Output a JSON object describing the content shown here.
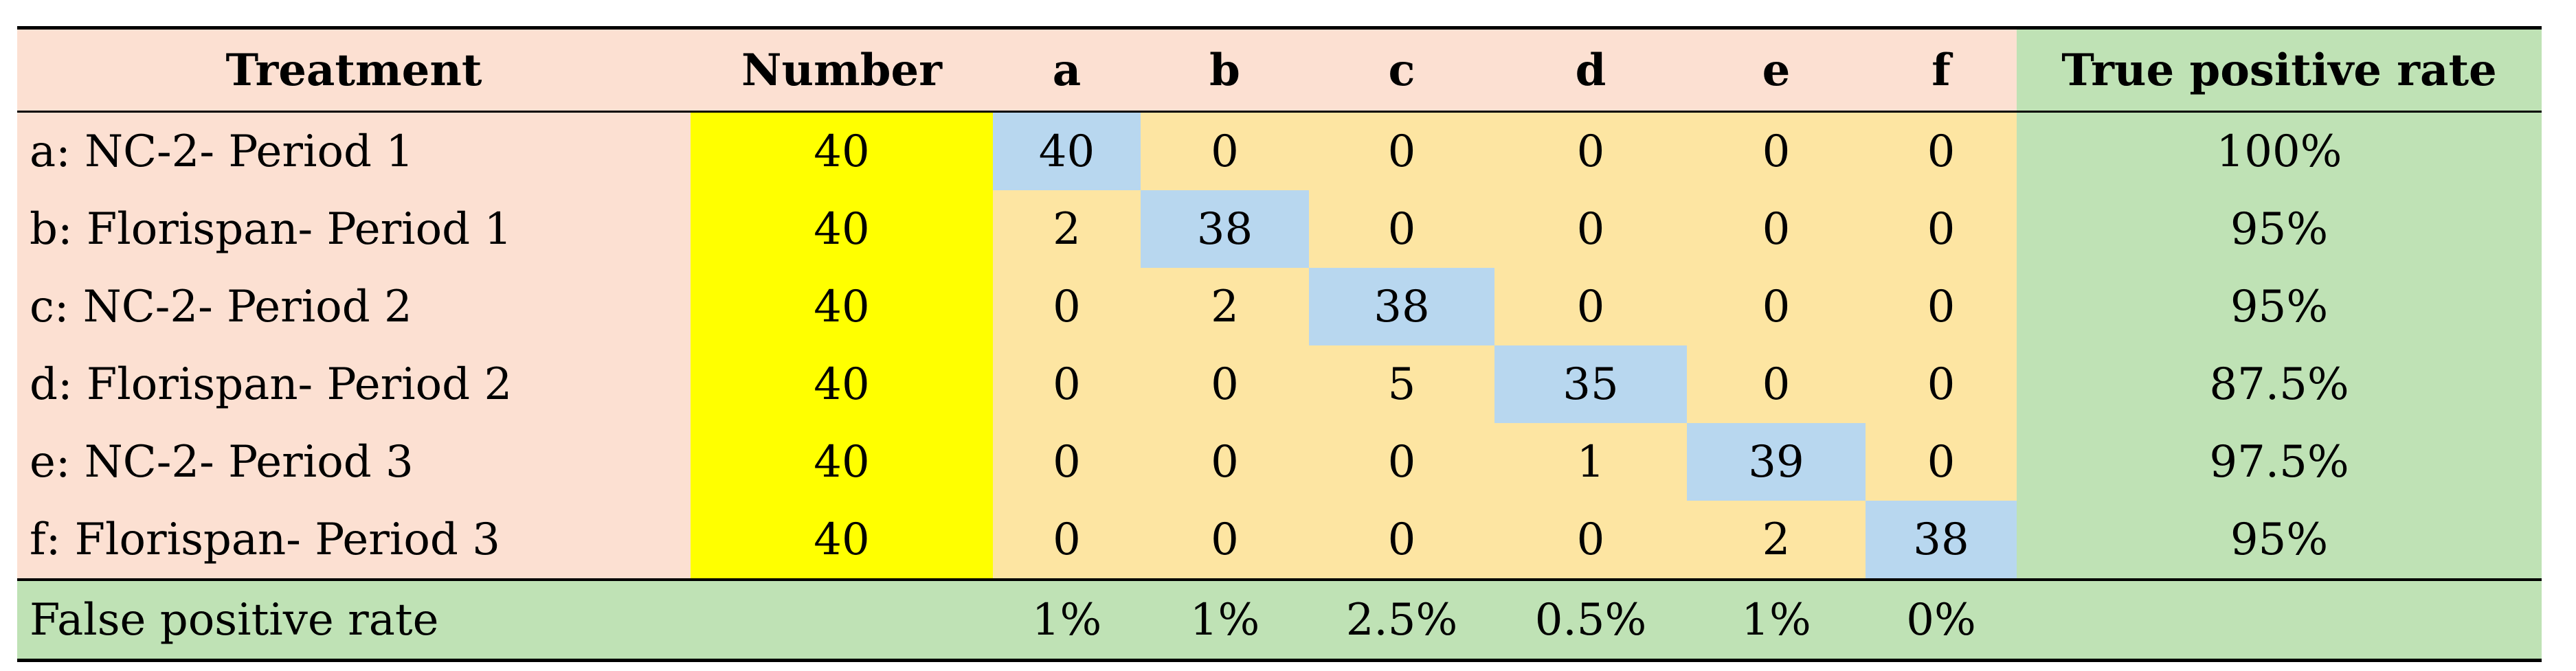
{
  "table": {
    "headers": {
      "treatment": "Treatment",
      "number": "Number",
      "classes": [
        "a",
        "b",
        "c",
        "d",
        "e",
        "f"
      ],
      "true_positive_rate": "True positive rate"
    },
    "rows": [
      {
        "treatment": "a: NC-2- Period 1",
        "number": "40",
        "cells": [
          "40",
          "0",
          "0",
          "0",
          "0",
          "0"
        ],
        "tpr": "100%"
      },
      {
        "treatment": "b: Florispan- Period 1",
        "number": "40",
        "cells": [
          "2",
          "38",
          "0",
          "0",
          "0",
          "0"
        ],
        "tpr": "95%"
      },
      {
        "treatment": "c: NC-2- Period 2",
        "number": "40",
        "cells": [
          "0",
          "2",
          "38",
          "0",
          "0",
          "0"
        ],
        "tpr": "95%"
      },
      {
        "treatment": "d: Florispan- Period 2",
        "number": "40",
        "cells": [
          "0",
          "0",
          "5",
          "35",
          "0",
          "0"
        ],
        "tpr": "87.5%"
      },
      {
        "treatment": "e: NC-2- Period 3",
        "number": "40",
        "cells": [
          "0",
          "0",
          "0",
          "1",
          "39",
          "0"
        ],
        "tpr": "97.5%"
      },
      {
        "treatment": "f: Florispan- Period 3",
        "number": "40",
        "cells": [
          "0",
          "0",
          "0",
          "0",
          "2",
          "38"
        ],
        "tpr": "95%"
      }
    ],
    "footer": {
      "label": "False positive rate",
      "rates": [
        "1%",
        "1%",
        "2.5%",
        "0.5%",
        "1%",
        "0%"
      ]
    }
  },
  "colors": {
    "header_bg": "#fce0d2",
    "true_positive_bg": "#bfe2b5",
    "number_bg": "#ffff00",
    "matrix_bg": "#fde5a2",
    "diagonal_bg": "#b8d7ef",
    "footer_bg": "#bfe2b5"
  }
}
